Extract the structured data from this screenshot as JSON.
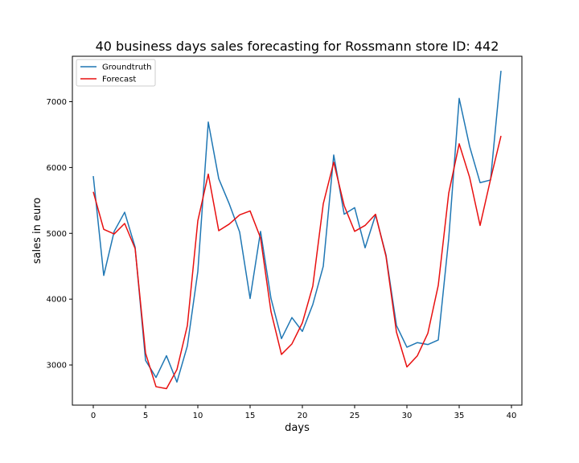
{
  "chart_data": {
    "type": "line",
    "title": "40 business days sales forecasting for Rossmann store ID: 442",
    "xlabel": "days",
    "ylabel": "sales in euro",
    "xlim": [
      -2,
      41
    ],
    "ylim": [
      2390,
      7690
    ],
    "xticks": [
      0,
      5,
      10,
      15,
      20,
      25,
      30,
      35,
      40
    ],
    "yticks": [
      3000,
      4000,
      5000,
      6000,
      7000
    ],
    "grid": false,
    "legend_position": "top-left",
    "x": [
      0,
      1,
      2,
      3,
      4,
      5,
      6,
      7,
      8,
      9,
      10,
      11,
      12,
      13,
      14,
      15,
      16,
      17,
      18,
      19,
      20,
      21,
      22,
      23,
      24,
      25,
      26,
      27,
      28,
      29,
      30,
      31,
      32,
      33,
      34,
      35,
      36,
      37,
      38,
      39
    ],
    "series": [
      {
        "name": "Groundtruth",
        "color": "#1f77b4",
        "values": [
          5870,
          4360,
          5030,
          5320,
          4790,
          3070,
          2810,
          3140,
          2740,
          3290,
          4420,
          6690,
          5830,
          5450,
          5020,
          4010,
          5030,
          4010,
          3400,
          3720,
          3510,
          3920,
          4500,
          6190,
          5290,
          5390,
          4780,
          5280,
          4670,
          3600,
          3270,
          3340,
          3310,
          3380,
          4920,
          7050,
          6320,
          5770,
          5810,
          7470
        ]
      },
      {
        "name": "Forecast",
        "color": "#e81010",
        "values": [
          5630,
          5060,
          4990,
          5150,
          4770,
          3180,
          2670,
          2640,
          2930,
          3600,
          5190,
          5900,
          5040,
          5140,
          5280,
          5340,
          4930,
          3810,
          3160,
          3320,
          3640,
          4200,
          5450,
          6080,
          5420,
          5030,
          5120,
          5290,
          4650,
          3500,
          2970,
          3140,
          3480,
          4210,
          5610,
          6360,
          5850,
          5120,
          5820,
          6480
        ]
      }
    ]
  }
}
